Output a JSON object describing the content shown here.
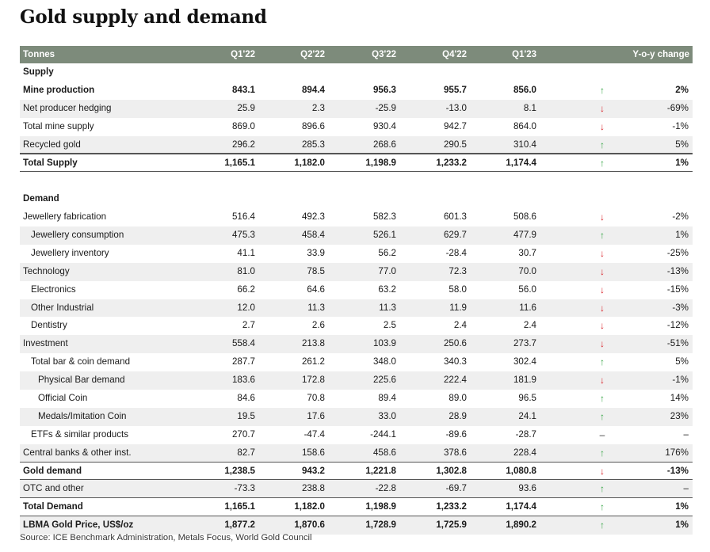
{
  "title": "Gold supply and demand",
  "header": {
    "label": "Tonnes",
    "columns": [
      "Q1'22",
      "Q2'22",
      "Q3'22",
      "Q4'22",
      "Q1'23"
    ],
    "yoy": "Y-o-y change"
  },
  "colors": {
    "header_bg": "#7d8b7b",
    "up": "#3aa648",
    "down": "#d9262c",
    "shade": "#efefef"
  },
  "icons": {
    "up": "↑",
    "down": "↓",
    "flat": "–"
  },
  "rows": [
    {
      "label": "Supply",
      "bold": true,
      "section": true,
      "values": []
    },
    {
      "label": "Mine production",
      "bold": true,
      "values": [
        "843.1",
        "894.4",
        "956.3",
        "955.7",
        "856.0"
      ],
      "trend": "up",
      "yoy": "2%"
    },
    {
      "label": "Net producer hedging",
      "values": [
        "25.9",
        "2.3",
        "-25.9",
        "-13.0",
        "8.1"
      ],
      "trend": "down",
      "yoy": "-69%"
    },
    {
      "label": "Total mine supply",
      "values": [
        "869.0",
        "896.6",
        "930.4",
        "942.7",
        "864.0"
      ],
      "trend": "down",
      "yoy": "-1%"
    },
    {
      "label": "Recycled gold",
      "values": [
        "296.2",
        "285.3",
        "268.6",
        "290.5",
        "310.4"
      ],
      "trend": "up",
      "yoy": "5%"
    },
    {
      "label": "Total Supply",
      "bold": true,
      "values": [
        "1,165.1",
        "1,182.0",
        "1,198.9",
        "1,233.2",
        "1,174.4"
      ],
      "trend": "up",
      "yoy": "1%"
    },
    {
      "spacer": true
    },
    {
      "label": "Demand",
      "bold": true,
      "section": true,
      "values": []
    },
    {
      "label": "Jewellery fabrication",
      "values": [
        "516.4",
        "492.3",
        "582.3",
        "601.3",
        "508.6"
      ],
      "trend": "down",
      "yoy": "-2%"
    },
    {
      "label": "Jewellery consumption",
      "indent": 1,
      "values": [
        "475.3",
        "458.4",
        "526.1",
        "629.7",
        "477.9"
      ],
      "trend": "up",
      "yoy": "1%"
    },
    {
      "label": "Jewellery inventory",
      "indent": 1,
      "values": [
        "41.1",
        "33.9",
        "56.2",
        "-28.4",
        "30.7"
      ],
      "trend": "down",
      "yoy": "-25%"
    },
    {
      "label": "Technology",
      "values": [
        "81.0",
        "78.5",
        "77.0",
        "72.3",
        "70.0"
      ],
      "trend": "down",
      "yoy": "-13%"
    },
    {
      "label": "Electronics",
      "indent": 1,
      "values": [
        "66.2",
        "64.6",
        "63.2",
        "58.0",
        "56.0"
      ],
      "trend": "down",
      "yoy": "-15%"
    },
    {
      "label": "Other Industrial",
      "indent": 1,
      "values": [
        "12.0",
        "11.3",
        "11.3",
        "11.9",
        "11.6"
      ],
      "trend": "down",
      "yoy": "-3%"
    },
    {
      "label": "Dentistry",
      "indent": 1,
      "values": [
        "2.7",
        "2.6",
        "2.5",
        "2.4",
        "2.4"
      ],
      "trend": "down",
      "yoy": "-12%"
    },
    {
      "label": "Investment",
      "values": [
        "558.4",
        "213.8",
        "103.9",
        "250.6",
        "273.7"
      ],
      "trend": "down",
      "yoy": "-51%"
    },
    {
      "label": "Total bar & coin demand",
      "indent": 1,
      "values": [
        "287.7",
        "261.2",
        "348.0",
        "340.3",
        "302.4"
      ],
      "trend": "up",
      "yoy": "5%"
    },
    {
      "label": "Physical Bar demand",
      "indent": 2,
      "values": [
        "183.6",
        "172.8",
        "225.6",
        "222.4",
        "181.9"
      ],
      "trend": "down",
      "yoy": "-1%"
    },
    {
      "label": "Official Coin",
      "indent": 2,
      "values": [
        "84.6",
        "70.8",
        "89.4",
        "89.0",
        "96.5"
      ],
      "trend": "up",
      "yoy": "14%"
    },
    {
      "label": "Medals/Imitation Coin",
      "indent": 2,
      "values": [
        "19.5",
        "17.6",
        "33.0",
        "28.9",
        "24.1"
      ],
      "trend": "up",
      "yoy": "23%"
    },
    {
      "label": "ETFs & similar products",
      "indent": 1,
      "values": [
        "270.7",
        "-47.4",
        "-244.1",
        "-89.6",
        "-28.7"
      ],
      "trend": "flat",
      "yoy": "–"
    },
    {
      "label": "Central banks & other inst.",
      "values": [
        "82.7",
        "158.6",
        "458.6",
        "378.6",
        "228.4"
      ],
      "trend": "up",
      "yoy": "176%"
    },
    {
      "label": "Gold demand",
      "bold": true,
      "values": [
        "1,238.5",
        "943.2",
        "1,221.8",
        "1,302.8",
        "1,080.8"
      ],
      "trend": "down",
      "yoy": "-13%"
    },
    {
      "label": "OTC and other",
      "values": [
        "-73.3",
        "238.8",
        "-22.8",
        "-69.7",
        "93.6"
      ],
      "trend": "up",
      "yoy": "–"
    },
    {
      "label": "Total Demand",
      "bold": true,
      "values": [
        "1,165.1",
        "1,182.0",
        "1,198.9",
        "1,233.2",
        "1,174.4"
      ],
      "trend": "up",
      "yoy": "1%"
    },
    {
      "label": "LBMA Gold Price, US$/oz",
      "bold": true,
      "values": [
        "1,877.2",
        "1,870.6",
        "1,728.9",
        "1,725.9",
        "1,890.2"
      ],
      "trend": "up",
      "yoy": "1%"
    }
  ],
  "source": "Source: ICE Benchmark Administration, Metals Focus, World Gold Council"
}
